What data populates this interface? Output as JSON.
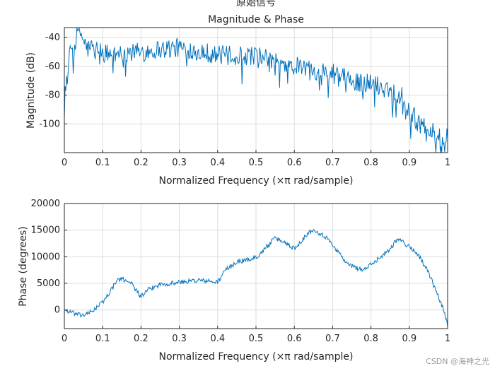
{
  "figure": {
    "suptitle": "原始信号",
    "watermark": "CSDN @海神之光"
  },
  "chart_data": [
    {
      "type": "line",
      "name": "magnitude",
      "title": "Magnitude & Phase",
      "xlabel": "Normalized Frequency  (×π rad/sample)",
      "ylabel": "Magnitude (dB)",
      "xlim": [
        0,
        1
      ],
      "ylim": [
        -120,
        -33
      ],
      "xticks": [
        0,
        0.1,
        0.2,
        0.3,
        0.4,
        0.5,
        0.6,
        0.7,
        0.8,
        0.9,
        1
      ],
      "xtick_labels": [
        "0",
        "0.1",
        "0.2",
        "0.3",
        "0.4",
        "0.5",
        "0.6",
        "0.7",
        "0.8",
        "0.9",
        "1"
      ],
      "yticks": [
        -100,
        -80,
        -60,
        -40
      ],
      "ytick_labels": [
        "-100",
        "-80",
        "-60",
        "-40"
      ],
      "grid": true,
      "series": [
        {
          "name": "Magnitude",
          "color": "#0072bd",
          "x": [
            0,
            0.01,
            0.02,
            0.03,
            0.04,
            0.05,
            0.06,
            0.08,
            0.1,
            0.12,
            0.15,
            0.2,
            0.25,
            0.3,
            0.35,
            0.4,
            0.45,
            0.5,
            0.55,
            0.6,
            0.65,
            0.7,
            0.75,
            0.8,
            0.85,
            0.88,
            0.9,
            0.92,
            0.95,
            0.97,
            1.0
          ],
          "y": [
            -80,
            -58,
            -47,
            -40,
            -35,
            -42,
            -48,
            -46,
            -50,
            -52,
            -51,
            -50,
            -48,
            -47,
            -49,
            -52,
            -53,
            -52,
            -57,
            -60,
            -62,
            -65,
            -70,
            -72,
            -76,
            -80,
            -90,
            -98,
            -104,
            -108,
            -110
          ]
        }
      ]
    },
    {
      "type": "line",
      "name": "phase",
      "title": "",
      "xlabel": "Normalized Frequency  (×π rad/sample)",
      "ylabel": "Phase (degrees)",
      "xlim": [
        0,
        1
      ],
      "ylim": [
        -3500,
        20000
      ],
      "xticks": [
        0,
        0.1,
        0.2,
        0.3,
        0.4,
        0.5,
        0.6,
        0.7,
        0.8,
        0.9,
        1
      ],
      "xtick_labels": [
        "0",
        "0.1",
        "0.2",
        "0.3",
        "0.4",
        "0.5",
        "0.6",
        "0.7",
        "0.8",
        "0.9",
        "1"
      ],
      "yticks": [
        0,
        5000,
        10000,
        15000,
        20000
      ],
      "ytick_labels": [
        "0",
        "5000",
        "10000",
        "15000",
        "20000"
      ],
      "grid": true,
      "series": [
        {
          "name": "Phase",
          "color": "#0072bd",
          "x": [
            0,
            0.02,
            0.04,
            0.06,
            0.08,
            0.1,
            0.12,
            0.14,
            0.17,
            0.2,
            0.22,
            0.25,
            0.3,
            0.35,
            0.4,
            0.42,
            0.45,
            0.5,
            0.53,
            0.55,
            0.58,
            0.6,
            0.63,
            0.65,
            0.68,
            0.7,
            0.74,
            0.78,
            0.8,
            0.85,
            0.87,
            0.9,
            0.92,
            0.95,
            0.97,
            0.99,
            1.0
          ],
          "y": [
            0,
            -500,
            -1000,
            -800,
            200,
            1500,
            3500,
            5800,
            5500,
            2500,
            3800,
            4800,
            5200,
            5600,
            5200,
            7500,
            9000,
            9800,
            12000,
            13500,
            12500,
            11500,
            14000,
            15200,
            13800,
            12300,
            8500,
            7500,
            8500,
            11500,
            13500,
            11800,
            10800,
            7000,
            3500,
            0,
            -3000
          ]
        }
      ]
    }
  ]
}
